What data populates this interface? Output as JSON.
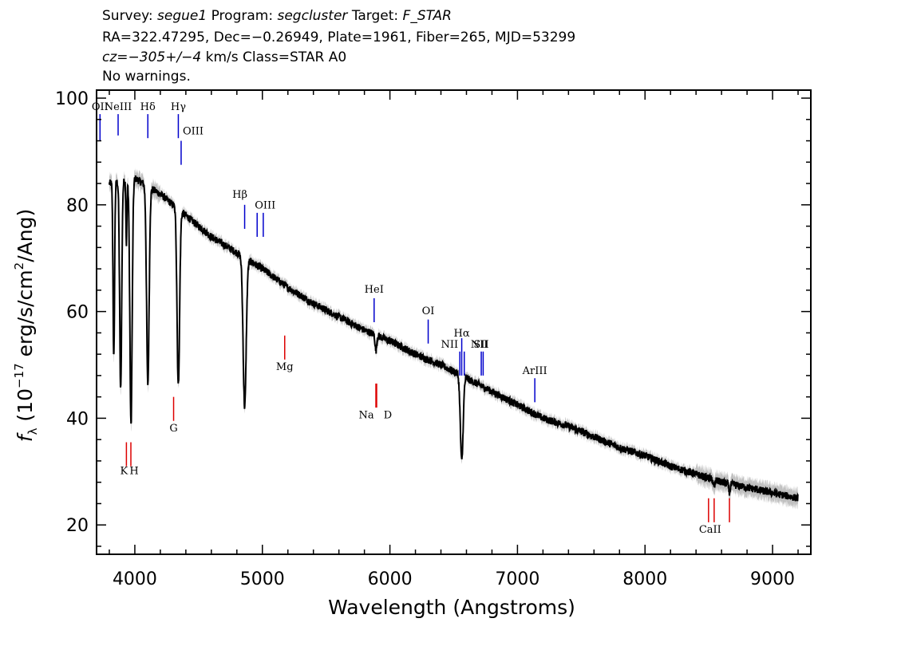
{
  "header": {
    "survey_label": "Survey:",
    "survey": "segue1",
    "program_label": "Program:",
    "program": "segcluster",
    "target_label": "Target:",
    "target": "F_STAR",
    "line2": "RA=322.47295, Dec=−0.26949, Plate=1961, Fiber=265, MJD=53299",
    "cz_label": "cz=",
    "cz": "−305+/−4",
    "cz_rest": "km/s Class=STAR A0",
    "line4": "No warnings."
  },
  "chart_data": {
    "type": "line",
    "title": "",
    "xlabel": "Wavelength (Angstroms)",
    "ylabel_prefix": "f",
    "ylabel_sub": "λ",
    "ylabel_main": " (10",
    "ylabel_exp1": "−17",
    "ylabel_mid": " erg/s/cm",
    "ylabel_exp2": "2",
    "ylabel_end": "/Ang)",
    "xlim": [
      3700,
      9300
    ],
    "ylim": [
      14.5,
      101.5
    ],
    "x_ticks": [
      4000,
      5000,
      6000,
      7000,
      8000,
      9000
    ],
    "y_ticks": [
      20,
      40,
      60,
      80,
      100
    ],
    "grid": false,
    "colors": {
      "flux": "#000000",
      "error_band": "#c0c0c0",
      "emission": "#0000cc",
      "absorption": "#dd0000"
    },
    "spectrum": {
      "x_start": 3800,
      "x_end": 9200,
      "continuum": [
        [
          3800,
          84
        ],
        [
          4000,
          85
        ],
        [
          4200,
          82
        ],
        [
          4400,
          78
        ],
        [
          4600,
          74
        ],
        [
          4800,
          71
        ],
        [
          5000,
          68
        ],
        [
          5200,
          64.5
        ],
        [
          5400,
          61.5
        ],
        [
          5600,
          59
        ],
        [
          5800,
          56.5
        ],
        [
          6000,
          54.5
        ],
        [
          6200,
          52
        ],
        [
          6400,
          50
        ],
        [
          6600,
          47.5
        ],
        [
          6800,
          45
        ],
        [
          7000,
          42.5
        ],
        [
          7200,
          40
        ],
        [
          7400,
          38.5
        ],
        [
          7600,
          36.5
        ],
        [
          7800,
          34.5
        ],
        [
          8000,
          33
        ],
        [
          8200,
          31
        ],
        [
          8400,
          29.5
        ],
        [
          8600,
          28
        ],
        [
          8800,
          27
        ],
        [
          9000,
          26
        ],
        [
          9200,
          25
        ]
      ],
      "absorption_lines": [
        {
          "center": 3835,
          "depth": 33,
          "width": 6
        },
        {
          "center": 3889,
          "depth": 39,
          "width": 8
        },
        {
          "center": 3934,
          "depth": 12,
          "width": 4
        },
        {
          "center": 3970,
          "depth": 46,
          "width": 9
        },
        {
          "center": 4102,
          "depth": 37,
          "width": 10
        },
        {
          "center": 4341,
          "depth": 33,
          "width": 10
        },
        {
          "center": 4861,
          "depth": 28,
          "width": 12
        },
        {
          "center": 5890,
          "depth": 3,
          "width": 6
        },
        {
          "center": 6563,
          "depth": 16,
          "width": 11
        },
        {
          "center": 8542,
          "depth": 1.5,
          "width": 6
        },
        {
          "center": 8662,
          "depth": 1.5,
          "width": 6
        }
      ]
    },
    "emission_lines": [
      {
        "label": "OII",
        "wave": 3727,
        "y_top": 97,
        "y_bot": 92,
        "label_y": 97.8,
        "anchor": "middle"
      },
      {
        "label": "NeIII",
        "wave": 3869,
        "y_top": 97,
        "y_bot": 93,
        "label_y": 97.8,
        "anchor": "middle"
      },
      {
        "label": "Hδ",
        "wave": 4102,
        "y_top": 97,
        "y_bot": 92.5,
        "label_y": 97.8,
        "anchor": "middle"
      },
      {
        "label": "Hγ",
        "wave": 4341,
        "y_top": 97,
        "y_bot": 92.5,
        "label_y": 97.8,
        "anchor": "middle"
      },
      {
        "label": "OIII",
        "wave": 4363,
        "y_top": 92,
        "y_bot": 87.5,
        "label_y": 93.2,
        "anchor": "start",
        "dx": 2
      },
      {
        "label": "Hβ",
        "wave": 4861,
        "y_top": 80,
        "y_bot": 75.5,
        "label_y": 81.3,
        "anchor": "middle",
        "dx": -6
      },
      {
        "label": "OIII",
        "wave": 4959,
        "y_top": 78.5,
        "y_bot": 74,
        "label_y": 79.3,
        "anchor": "start",
        "dx": -3
      },
      {
        "label": "OIII",
        "wave": 5007,
        "y_top": 78.5,
        "y_bot": 74,
        "label_y": null
      },
      {
        "label": "HeI",
        "wave": 5876,
        "y_top": 62.5,
        "y_bot": 58,
        "label_y": 63.5,
        "anchor": "middle"
      },
      {
        "label": "OI",
        "wave": 6300,
        "y_top": 58.5,
        "y_bot": 54,
        "label_y": 59.5,
        "anchor": "middle"
      },
      {
        "label": "NII",
        "wave": 6548,
        "y_top": 52.5,
        "y_bot": 48,
        "label_y": 53.2,
        "anchor": "end",
        "dx": -2
      },
      {
        "label": "Hα",
        "wave": 6563,
        "y_top": 55,
        "y_bot": 48,
        "label_y": 55.3,
        "anchor": "middle"
      },
      {
        "label": "NII",
        "wave": 6583,
        "y_top": 52.5,
        "y_bot": 48,
        "label_y": 53.2,
        "anchor": "start",
        "dx": 8
      },
      {
        "label": "SII",
        "wave": 6716,
        "y_top": 52.5,
        "y_bot": 48,
        "label_y": 53.2,
        "anchor": "middle"
      },
      {
        "label": "SII",
        "wave": 6731,
        "y_top": 52.5,
        "y_bot": 48,
        "label_y": null
      },
      {
        "label": "ArIII",
        "wave": 7136,
        "y_top": 47.5,
        "y_bot": 43,
        "label_y": 48.3,
        "anchor": "middle"
      }
    ],
    "absorption_markers": [
      {
        "label": "K",
        "wave": 3934,
        "y_top": 35.5,
        "y_bot": 31,
        "label_y": 29.5,
        "anchor": "middle",
        "dx": -3
      },
      {
        "label": "H",
        "wave": 3969,
        "y_top": 35.5,
        "y_bot": 31,
        "label_y": 29.5,
        "anchor": "middle",
        "dx": 4
      },
      {
        "label": "G",
        "wave": 4304,
        "y_top": 44,
        "y_bot": 39.5,
        "label_y": 37.5,
        "anchor": "middle"
      },
      {
        "label": "Mg",
        "wave": 5175,
        "y_top": 55.5,
        "y_bot": 51,
        "label_y": 49,
        "anchor": "middle"
      },
      {
        "label": "Na",
        "wave": 5890,
        "y_top": 46.5,
        "y_bot": 42,
        "label_y": 40,
        "anchor": "middle",
        "dx": -12
      },
      {
        "label": "D",
        "wave": 5896,
        "y_top": 46.5,
        "y_bot": 42,
        "label_y": 40,
        "anchor": "middle",
        "dx": 14
      },
      {
        "label": "CaII",
        "wave": 8498,
        "y_top": 25,
        "y_bot": 20.5,
        "label_y": 18.5,
        "anchor": "start",
        "dx": -12
      },
      {
        "label": "",
        "wave": 8542,
        "y_top": 25,
        "y_bot": 20.5,
        "label_y": null
      },
      {
        "label": "",
        "wave": 8662,
        "y_top": 25,
        "y_bot": 20.5,
        "label_y": null
      }
    ]
  }
}
